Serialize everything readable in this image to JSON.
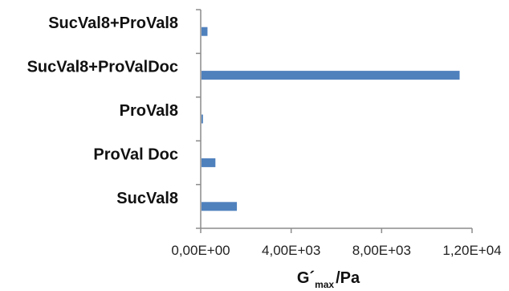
{
  "chart_data": {
    "type": "bar",
    "orientation": "horizontal",
    "categories": [
      "SucVal8",
      "ProVal Doc",
      "ProVal8",
      "SucVal8+ProValDoc",
      "SucVal8+ProVal8"
    ],
    "values": [
      1600,
      650,
      100,
      11450,
      300
    ],
    "xlabel": {
      "main": "G´",
      "sub": "max",
      "unit": "/Pa"
    },
    "xlim": [
      0,
      12000
    ],
    "xticks": [
      0,
      4000,
      8000,
      12000
    ],
    "xtick_labels": [
      "0,00E+00",
      "4,00E+03",
      "8,00E+03",
      "1,20E+04"
    ],
    "bar_color": "#4F81BD",
    "grid": false,
    "legend": "none"
  }
}
